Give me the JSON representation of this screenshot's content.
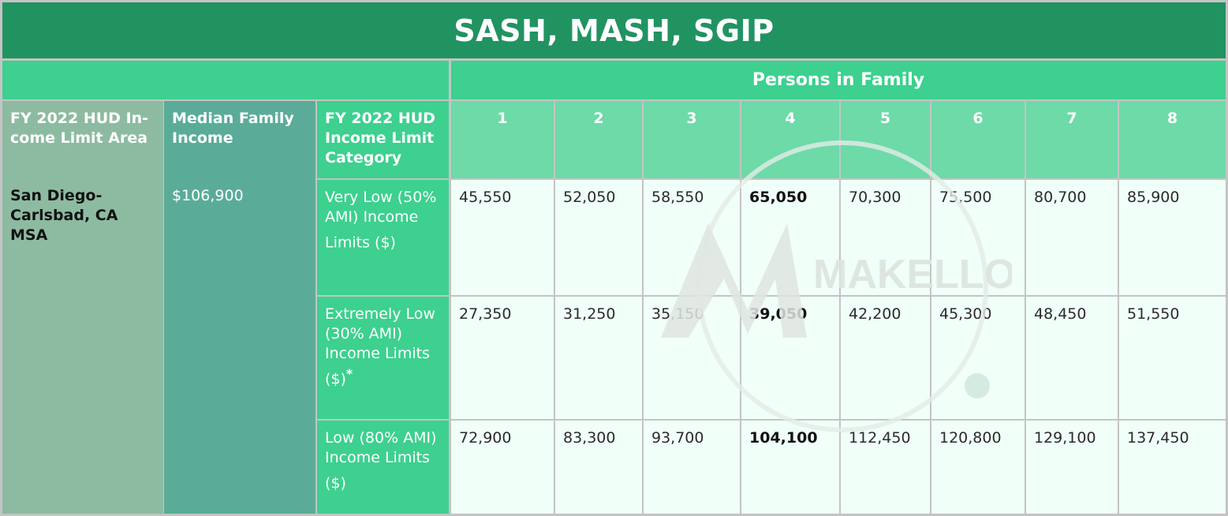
{
  "title": "SASH, MASH, SGIP",
  "persons_header": "Persons in Family",
  "col_area": "FY 2022 HUD In-come Limit Area",
  "col_median": "Median Family Income",
  "col_category": "FY 2022 HUD Income Limit Category",
  "persons": [
    "1",
    "2",
    "3",
    "4",
    "5",
    "6",
    "7",
    "8"
  ],
  "area": "San Diego-Carlsbad, CA MSA",
  "median": "$106,900",
  "rows": [
    {
      "category": "Very Low (50% AMI) Income Limits ($)",
      "asterisk": "",
      "values": [
        "45,550",
        "52,050",
        "58,550",
        "65,050",
        "70,300",
        "75,500",
        "80,700",
        "85,900"
      ]
    },
    {
      "category": "Extremely Low (30% AMI) Income Limits ($)",
      "asterisk": "*",
      "values": [
        "27,350",
        "31,250",
        "35,150",
        "39,050",
        "42,200",
        "45,300",
        "48,450",
        "51,550"
      ]
    },
    {
      "category": "Low (80% AMI) Income Limits ($)",
      "asterisk": "",
      "values": [
        "72,900",
        "83,300",
        "93,700",
        "104,100",
        "112,450",
        "120,800",
        "129,100",
        "137,450"
      ]
    }
  ],
  "watermark_text": "MAKELLO"
}
